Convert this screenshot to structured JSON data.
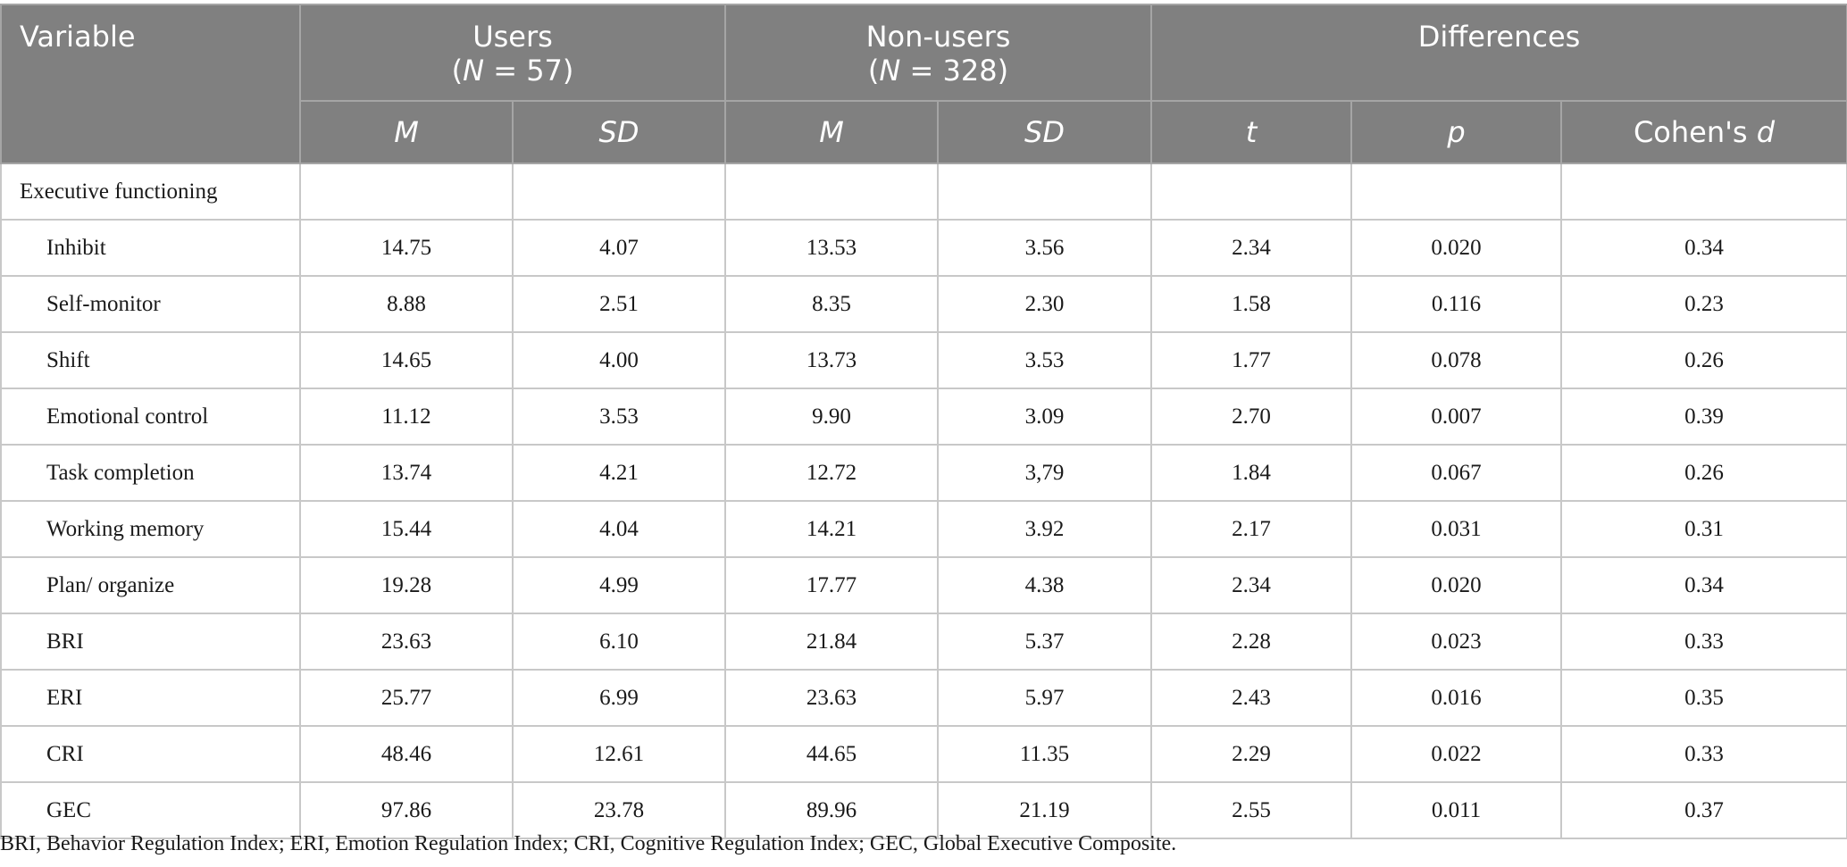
{
  "header": {
    "variable": "Variable",
    "users_label": "Users",
    "users_n_prefix": "(",
    "users_n_var": "N",
    "users_n_value": " = 57)",
    "nonusers_label": "Non-users",
    "nonusers_n_prefix": "(",
    "nonusers_n_var": "N",
    "nonusers_n_value": " = 328)",
    "differences": "Differences",
    "m": "M",
    "sd": "SD",
    "t": "t",
    "p": "p",
    "cohens_prefix": "Cohen's ",
    "cohens_d": "d"
  },
  "section": "Executive functioning",
  "rows": [
    {
      "label": "Inhibit",
      "users_m": "14.75",
      "users_sd": "4.07",
      "non_m": "13.53",
      "non_sd": "3.56",
      "t": "2.34",
      "p": "0.020",
      "d": "0.34"
    },
    {
      "label": "Self-monitor",
      "users_m": "8.88",
      "users_sd": "2.51",
      "non_m": "8.35",
      "non_sd": "2.30",
      "t": "1.58",
      "p": "0.116",
      "d": "0.23"
    },
    {
      "label": "Shift",
      "users_m": "14.65",
      "users_sd": "4.00",
      "non_m": "13.73",
      "non_sd": "3.53",
      "t": "1.77",
      "p": "0.078",
      "d": "0.26"
    },
    {
      "label": "Emotional control",
      "users_m": "11.12",
      "users_sd": "3.53",
      "non_m": "9.90",
      "non_sd": "3.09",
      "t": "2.70",
      "p": "0.007",
      "d": "0.39"
    },
    {
      "label": "Task completion",
      "users_m": "13.74",
      "users_sd": "4.21",
      "non_m": "12.72",
      "non_sd": "3,79",
      "t": "1.84",
      "p": "0.067",
      "d": "0.26"
    },
    {
      "label": "Working memory",
      "users_m": "15.44",
      "users_sd": "4.04",
      "non_m": "14.21",
      "non_sd": "3.92",
      "t": "2.17",
      "p": "0.031",
      "d": "0.31"
    },
    {
      "label": "Plan/ organize",
      "users_m": "19.28",
      "users_sd": "4.99",
      "non_m": "17.77",
      "non_sd": "4.38",
      "t": "2.34",
      "p": "0.020",
      "d": "0.34"
    },
    {
      "label": "BRI",
      "users_m": "23.63",
      "users_sd": "6.10",
      "non_m": "21.84",
      "non_sd": "5.37",
      "t": "2.28",
      "p": "0.023",
      "d": "0.33"
    },
    {
      "label": "ERI",
      "users_m": "25.77",
      "users_sd": "6.99",
      "non_m": "23.63",
      "non_sd": "5.97",
      "t": "2.43",
      "p": "0.016",
      "d": "0.35"
    },
    {
      "label": "CRI",
      "users_m": "48.46",
      "users_sd": "12.61",
      "non_m": "44.65",
      "non_sd": "11.35",
      "t": "2.29",
      "p": "0.022",
      "d": "0.33"
    },
    {
      "label": "GEC",
      "users_m": "97.86",
      "users_sd": "23.78",
      "non_m": "89.96",
      "non_sd": "21.19",
      "t": "2.55",
      "p": "0.011",
      "d": "0.37"
    }
  ],
  "footnote": "BRI, Behavior Regulation Index; ERI, Emotion Regulation Index; CRI, Cognitive Regulation Index; GEC, Global Executive Composite.",
  "colors": {
    "header_bg": "#808080",
    "header_text": "#ffffff",
    "grid": "#c8c8c8"
  }
}
